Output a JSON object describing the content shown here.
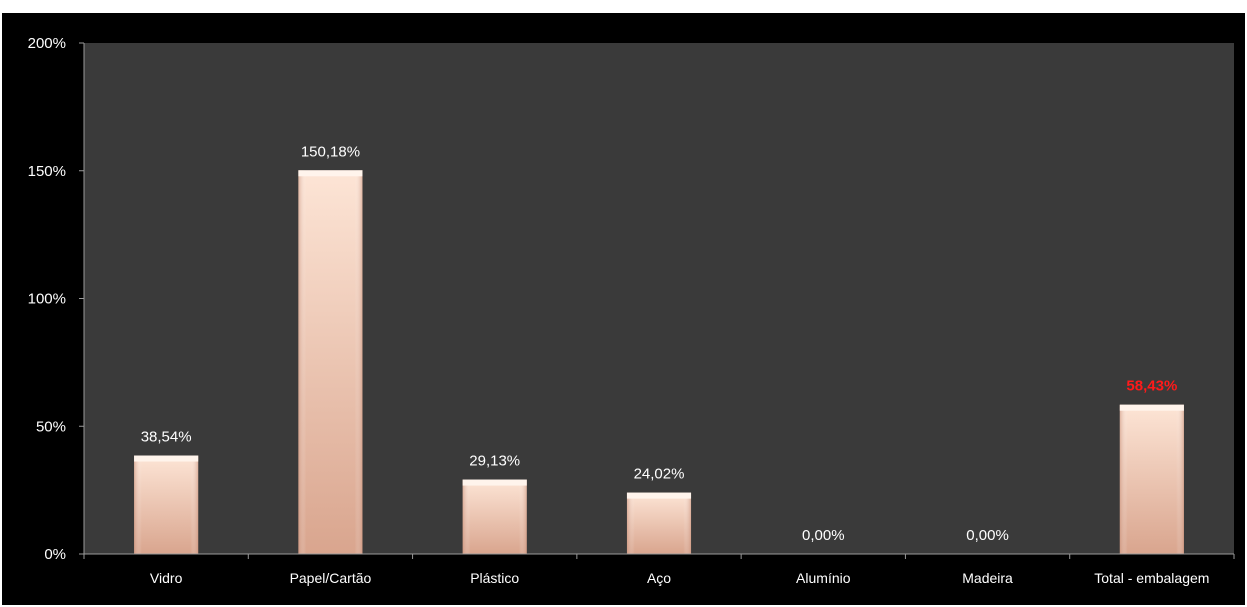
{
  "chart_data": {
    "type": "bar",
    "categories": [
      "Vidro",
      "Papel/Cartão",
      "Plástico",
      "Aço",
      "Alumínio",
      "Madeira",
      "Total - embalagem"
    ],
    "values": [
      38.54,
      150.18,
      29.13,
      24.02,
      0.0,
      0.0,
      58.43
    ],
    "data_labels": [
      "38,54%",
      "150,18%",
      "29,13%",
      "24,02%",
      "0,00%",
      "0,00%",
      "58,43%"
    ],
    "highlight_index": 6,
    "yticks": [
      {
        "value": 0,
        "label": "0%"
      },
      {
        "value": 50,
        "label": "50%"
      },
      {
        "value": 100,
        "label": "100%"
      },
      {
        "value": 150,
        "label": "150%"
      },
      {
        "value": 200,
        "label": "200%"
      }
    ],
    "ylim": [
      0,
      200
    ],
    "title": "",
    "xlabel": "",
    "ylabel": "",
    "grid": false,
    "colors": {
      "background": "#000000",
      "plot_area": "#3a3a3a",
      "bar_light": "#fde5d6",
      "bar_dark": "#d9a58e",
      "text": "#ffffff",
      "highlight_label": "#ff1a1a",
      "axis": "#9a9a9a"
    }
  }
}
